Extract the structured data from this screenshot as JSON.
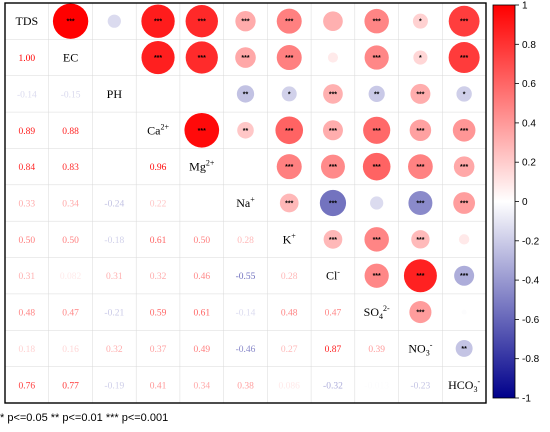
{
  "chart_data": {
    "type": "heatmap",
    "subtype": "correlation-matrix",
    "variables": [
      {
        "name": "TDS",
        "sup": ""
      },
      {
        "name": "EC",
        "sup": ""
      },
      {
        "name": "PH",
        "sup": ""
      },
      {
        "name": "Ca",
        "sup": "2+"
      },
      {
        "name": "Mg",
        "sup": "2+"
      },
      {
        "name": "Na",
        "sup": "+"
      },
      {
        "name": "K",
        "sup": "+"
      },
      {
        "name": "Cl",
        "sup": "-"
      },
      {
        "name": "SO",
        "sub": "4",
        "sup": "2-"
      },
      {
        "name": "NO",
        "sub": "3",
        "sup": "-"
      },
      {
        "name": "HCO",
        "sub": "3",
        "sup": "-"
      }
    ],
    "lower_triangle_labels": [
      [],
      [
        "1.00"
      ],
      [
        "-0.14",
        "-0.15"
      ],
      [
        "0.89",
        "0.88",
        ""
      ],
      [
        "0.84",
        "0.83",
        "",
        "0.96"
      ],
      [
        "0.33",
        "0.34",
        "-0.24",
        "0.22",
        ""
      ],
      [
        "0.50",
        "0.50",
        "-0.18",
        "0.61",
        "0.50",
        "0.28"
      ],
      [
        "0.31",
        "0.082",
        "0.31",
        "0.32",
        "0.46",
        "-0.55",
        "0.28"
      ],
      [
        "0.48",
        "0.47",
        "-0.21",
        "0.59",
        "0.61",
        "-0.14",
        "0.48",
        "0.47"
      ],
      [
        "0.18",
        "0.16",
        "0.32",
        "0.37",
        "0.49",
        "-0.46",
        "0.27",
        "0.87",
        "0.39"
      ],
      [
        "0.76",
        "0.77",
        "-0.19",
        "0.41",
        "0.34",
        "0.38",
        "0.086",
        "-0.32",
        "-0.013",
        "-0.23"
      ]
    ],
    "upper_triangle": [
      {
        "row": 0,
        "col": 1,
        "r": 1.0,
        "stars": "***"
      },
      {
        "row": 0,
        "col": 2,
        "r": -0.14,
        "stars": ""
      },
      {
        "row": 0,
        "col": 3,
        "r": 0.89,
        "stars": "***"
      },
      {
        "row": 0,
        "col": 4,
        "r": 0.84,
        "stars": "***"
      },
      {
        "row": 0,
        "col": 5,
        "r": 0.33,
        "stars": "***"
      },
      {
        "row": 0,
        "col": 6,
        "r": 0.5,
        "stars": "***"
      },
      {
        "row": 0,
        "col": 7,
        "r": 0.31,
        "stars": ""
      },
      {
        "row": 0,
        "col": 8,
        "r": 0.48,
        "stars": "***"
      },
      {
        "row": 0,
        "col": 9,
        "r": 0.18,
        "stars": "*"
      },
      {
        "row": 0,
        "col": 10,
        "r": 0.76,
        "stars": "***"
      },
      {
        "row": 1,
        "col": 3,
        "r": 0.88,
        "stars": "***"
      },
      {
        "row": 1,
        "col": 4,
        "r": 0.83,
        "stars": "***"
      },
      {
        "row": 1,
        "col": 5,
        "r": 0.34,
        "stars": "***"
      },
      {
        "row": 1,
        "col": 6,
        "r": 0.5,
        "stars": "***"
      },
      {
        "row": 1,
        "col": 7,
        "r": 0.082,
        "stars": ""
      },
      {
        "row": 1,
        "col": 8,
        "r": 0.47,
        "stars": "***"
      },
      {
        "row": 1,
        "col": 9,
        "r": 0.16,
        "stars": "*"
      },
      {
        "row": 1,
        "col": 10,
        "r": 0.77,
        "stars": "***"
      },
      {
        "row": 2,
        "col": 5,
        "r": -0.24,
        "stars": "**"
      },
      {
        "row": 2,
        "col": 6,
        "r": -0.18,
        "stars": "*"
      },
      {
        "row": 2,
        "col": 7,
        "r": 0.31,
        "stars": "***"
      },
      {
        "row": 2,
        "col": 8,
        "r": -0.21,
        "stars": "**"
      },
      {
        "row": 2,
        "col": 9,
        "r": 0.32,
        "stars": "***"
      },
      {
        "row": 2,
        "col": 10,
        "r": -0.19,
        "stars": "*"
      },
      {
        "row": 3,
        "col": 4,
        "r": 0.96,
        "stars": "***"
      },
      {
        "row": 3,
        "col": 5,
        "r": 0.22,
        "stars": "**"
      },
      {
        "row": 3,
        "col": 6,
        "r": 0.61,
        "stars": "***"
      },
      {
        "row": 3,
        "col": 7,
        "r": 0.32,
        "stars": "***"
      },
      {
        "row": 3,
        "col": 8,
        "r": 0.59,
        "stars": "***"
      },
      {
        "row": 3,
        "col": 9,
        "r": 0.37,
        "stars": "***"
      },
      {
        "row": 3,
        "col": 10,
        "r": 0.41,
        "stars": "***"
      },
      {
        "row": 4,
        "col": 6,
        "r": 0.5,
        "stars": "***"
      },
      {
        "row": 4,
        "col": 7,
        "r": 0.46,
        "stars": "***"
      },
      {
        "row": 4,
        "col": 8,
        "r": 0.61,
        "stars": "***"
      },
      {
        "row": 4,
        "col": 9,
        "r": 0.49,
        "stars": "***"
      },
      {
        "row": 4,
        "col": 10,
        "r": 0.34,
        "stars": "***"
      },
      {
        "row": 5,
        "col": 6,
        "r": 0.28,
        "stars": "***"
      },
      {
        "row": 5,
        "col": 7,
        "r": -0.55,
        "stars": "***"
      },
      {
        "row": 5,
        "col": 8,
        "r": -0.14,
        "stars": ""
      },
      {
        "row": 5,
        "col": 9,
        "r": -0.46,
        "stars": "***"
      },
      {
        "row": 5,
        "col": 10,
        "r": 0.38,
        "stars": "***"
      },
      {
        "row": 6,
        "col": 7,
        "r": 0.28,
        "stars": "***"
      },
      {
        "row": 6,
        "col": 8,
        "r": 0.48,
        "stars": "***"
      },
      {
        "row": 6,
        "col": 9,
        "r": 0.27,
        "stars": "***"
      },
      {
        "row": 6,
        "col": 10,
        "r": 0.086,
        "stars": ""
      },
      {
        "row": 7,
        "col": 8,
        "r": 0.47,
        "stars": "***"
      },
      {
        "row": 7,
        "col": 9,
        "r": 0.87,
        "stars": "***"
      },
      {
        "row": 7,
        "col": 10,
        "r": -0.32,
        "stars": "***"
      },
      {
        "row": 8,
        "col": 9,
        "r": 0.39,
        "stars": "***"
      },
      {
        "row": 8,
        "col": 10,
        "r": -0.013,
        "stars": ""
      },
      {
        "row": 9,
        "col": 10,
        "r": -0.23,
        "stars": "**"
      }
    ],
    "colorbar": {
      "ticks": [
        "1",
        "0.8",
        "0.6",
        "0.4",
        "0.2",
        "0",
        "-0.2",
        "-0.4",
        "-0.6",
        "-0.8",
        "-1"
      ],
      "range": [
        -1,
        1
      ],
      "low_color": "#00008b",
      "mid_color": "#ffffff",
      "high_color": "#ff0000"
    }
  },
  "footnote": "* p<=0.05  ** p<=0.01  *** p<=0.001"
}
